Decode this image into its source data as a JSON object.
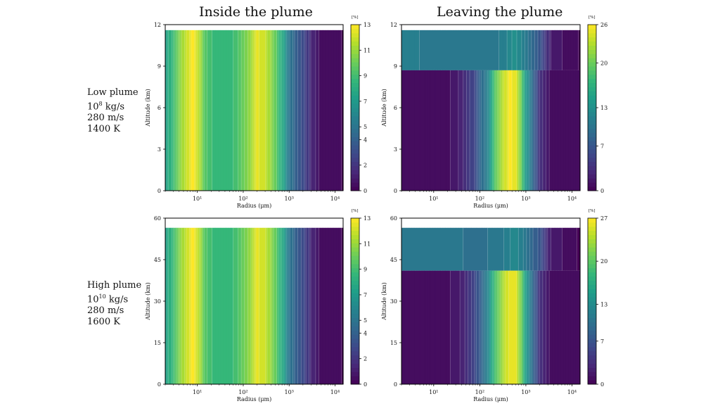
{
  "titles": {
    "left": "Inside the plume",
    "right": "Leaving the plume"
  },
  "rows": [
    {
      "name": "Low plume",
      "mass_base": "10",
      "mass_exp": "8",
      "mass_unit": " kg/s",
      "velocity": "280 m/s",
      "temperature": "1400 K"
    },
    {
      "name": "High plume",
      "mass_base": "10",
      "mass_exp": "10",
      "mass_unit": " kg/s",
      "velocity": "280 m/s",
      "temperature": "1600 K"
    }
  ],
  "colormap": "viridis",
  "colors": {
    "low": "#440154",
    "high": "#fde725",
    "contour": "#ffffff"
  },
  "chart_data": [
    {
      "type": "heatmap",
      "panel": "top-left",
      "xlabel": "Radius (μm)",
      "ylabel": "Altitude (km)",
      "xscale": "log",
      "xlim": [
        2,
        15000
      ],
      "xticks": [
        10,
        100,
        1000,
        10000
      ],
      "xticklabels": [
        "10¹",
        "10²",
        "10³",
        "10⁴"
      ],
      "ylim": [
        0,
        12
      ],
      "yticks": [
        0,
        3,
        6,
        9,
        12
      ],
      "colorbar": {
        "label": "[%]",
        "ticks": [
          0,
          2,
          4,
          5,
          7,
          9,
          11,
          13
        ],
        "range": [
          0,
          13
        ]
      },
      "plume_top": 11.6,
      "radius": [
        2,
        4,
        6,
        8,
        10,
        15,
        25,
        40,
        70,
        100,
        150,
        200,
        300,
        500,
        800,
        1000,
        2000,
        3000,
        5000,
        15000
      ],
      "value": [
        7,
        10.5,
        12,
        13,
        12,
        9.5,
        8.5,
        8.5,
        9,
        10,
        11,
        12.5,
        12,
        10,
        7,
        5,
        3,
        1.5,
        0.4,
        0.2
      ]
    },
    {
      "type": "heatmap",
      "panel": "top-right",
      "xlabel": "Radius (μm)",
      "ylabel": "Altitude (km)",
      "xscale": "log",
      "xlim": [
        2,
        15000
      ],
      "xticks": [
        10,
        100,
        1000,
        10000
      ],
      "xticklabels": [
        "10¹",
        "10²",
        "10³",
        "10⁴"
      ],
      "ylim": [
        0,
        12
      ],
      "yticks": [
        0,
        3,
        6,
        9,
        12
      ],
      "colorbar": {
        "label": "[%]",
        "ticks": [
          0,
          7,
          13,
          20,
          26
        ],
        "range": [
          0,
          26
        ]
      },
      "plume_top": 11.6,
      "layer_boundary": 8.7,
      "radius_lower": [
        2,
        20,
        40,
        80,
        150,
        200,
        300,
        450,
        600,
        800,
        1000,
        1500,
        2000,
        3000,
        5000,
        15000
      ],
      "value_lower": [
        0.5,
        1,
        2.5,
        6,
        12,
        18,
        23,
        26,
        25,
        20,
        14,
        8,
        4,
        1.5,
        0.5,
        0.5
      ],
      "radius_upper": [
        2,
        30,
        100,
        300,
        600,
        1000,
        2000,
        3500,
        15000
      ],
      "value_upper": [
        11,
        10.5,
        10,
        11,
        13,
        10.5,
        7,
        2,
        0.3
      ]
    },
    {
      "type": "heatmap",
      "panel": "bottom-left",
      "xlabel": "Radius (μm)",
      "ylabel": "Altitude (km)",
      "xscale": "log",
      "xlim": [
        2,
        15000
      ],
      "xticks": [
        10,
        100,
        1000,
        10000
      ],
      "xticklabels": [
        "10¹",
        "10²",
        "10³",
        "10⁴"
      ],
      "ylim": [
        0,
        60
      ],
      "yticks": [
        0,
        15,
        30,
        45,
        60
      ],
      "colorbar": {
        "label": "[%]",
        "ticks": [
          0,
          2,
          4,
          5,
          7,
          9,
          11,
          13
        ],
        "range": [
          0,
          13
        ]
      },
      "plume_top": 56.5,
      "radius": [
        2,
        4,
        6,
        8,
        10,
        15,
        25,
        40,
        70,
        100,
        150,
        200,
        300,
        500,
        800,
        1000,
        2000,
        3000,
        5000,
        15000
      ],
      "value": [
        7,
        10.5,
        12,
        13,
        12,
        9.5,
        8.5,
        8.5,
        9,
        10,
        11,
        12.5,
        12,
        10,
        7,
        5,
        3,
        1.5,
        0.4,
        0.2
      ]
    },
    {
      "type": "heatmap",
      "panel": "bottom-right",
      "xlabel": "Radius (μm)",
      "ylabel": "Altitude (km)",
      "xscale": "log",
      "xlim": [
        2,
        15000
      ],
      "xticks": [
        10,
        100,
        1000,
        10000
      ],
      "xticklabels": [
        "10¹",
        "10²",
        "10³",
        "10⁴"
      ],
      "ylim": [
        0,
        60
      ],
      "yticks": [
        0,
        15,
        30,
        45,
        60
      ],
      "colorbar": {
        "label": "[%]",
        "ticks": [
          0,
          7,
          13,
          20,
          27
        ],
        "range": [
          0,
          27
        ]
      },
      "plume_top": 56.5,
      "layer_boundary": 41,
      "radius_lower": [
        2,
        20,
        40,
        80,
        150,
        200,
        300,
        450,
        600,
        800,
        1000,
        1500,
        2000,
        3000,
        5000,
        15000
      ],
      "value_lower": [
        0.5,
        1,
        2.5,
        6,
        12,
        18,
        23,
        26.5,
        26,
        21,
        15,
        8,
        4,
        1.5,
        0.5,
        0.5
      ],
      "radius_upper": [
        2,
        30,
        100,
        300,
        600,
        1000,
        2000,
        3500,
        15000
      ],
      "value_upper": [
        11,
        10.5,
        10,
        11,
        13,
        10.5,
        7,
        2,
        0.3
      ]
    }
  ]
}
